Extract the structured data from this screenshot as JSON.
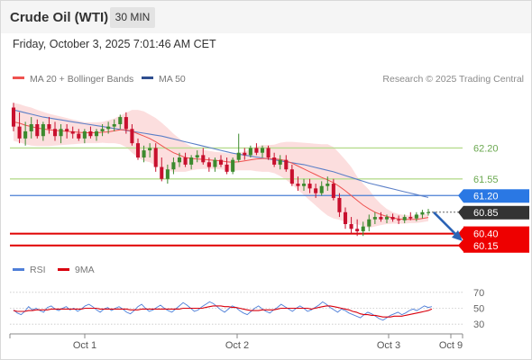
{
  "header": {
    "title": "Crude Oil (WTI)",
    "interval": "30 MIN"
  },
  "timestamp": "Friday, October 3, 2025 7:01:46 AM CET",
  "legend": {
    "ma20": "MA 20 + Bollinger Bands",
    "ma50": "MA 50",
    "credit": "Research © 2025 Trading Central"
  },
  "rsi_legend": {
    "rsi": "RSI",
    "ma9": "9MA"
  },
  "colors": {
    "up": "#3c8a2e",
    "down": "#c8102e",
    "ma20": "#ef5350",
    "band_fill": "#fbd3d3",
    "ma50": "#5b7fc7",
    "green_level": "#b7dc8f",
    "blue_level": "#4a7fd4",
    "red_level": "#e00000",
    "last_price": "#333333",
    "arrow": "#2b63b5",
    "rsi_line": "#4f7fd8"
  },
  "chart_data": [
    {
      "type": "candlestick",
      "title": "Crude Oil (WTI)",
      "interval": "30 MIN",
      "x_ticks": [
        "Oct 1",
        "Oct 2",
        "Oct 3",
        "Oct 9"
      ],
      "ylim": [
        59.9,
        63.4
      ],
      "levels": [
        {
          "value": "62.20",
          "kind": "resistance",
          "color": "#b7dc8f"
        },
        {
          "value": "61.55",
          "kind": "resistance",
          "color": "#b7dc8f"
        },
        {
          "value": "61.20",
          "kind": "pivot",
          "color": "#4a7fd4"
        },
        {
          "value": "60.85",
          "kind": "last",
          "color": "#333333"
        },
        {
          "value": "60.40",
          "kind": "support",
          "color": "#e00000"
        },
        {
          "value": "60.15",
          "kind": "support",
          "color": "#e00000"
        }
      ],
      "candles": [
        [
          63.05,
          63.15,
          62.55,
          62.65
        ],
        [
          62.65,
          62.95,
          62.3,
          62.4
        ],
        [
          62.4,
          62.75,
          62.25,
          62.55
        ],
        [
          62.55,
          62.85,
          62.4,
          62.7
        ],
        [
          62.7,
          62.8,
          62.4,
          62.45
        ],
        [
          62.45,
          62.75,
          62.35,
          62.7
        ],
        [
          62.7,
          62.85,
          62.5,
          62.6
        ],
        [
          62.6,
          62.75,
          62.35,
          62.45
        ],
        [
          62.45,
          62.7,
          62.3,
          62.6
        ],
        [
          62.6,
          62.7,
          62.4,
          62.55
        ],
        [
          62.55,
          62.65,
          62.4,
          62.5
        ],
        [
          62.5,
          62.6,
          62.35,
          62.4
        ],
        [
          62.4,
          62.6,
          62.3,
          62.55
        ],
        [
          62.55,
          62.65,
          62.4,
          62.45
        ],
        [
          62.45,
          62.6,
          62.35,
          62.55
        ],
        [
          62.55,
          62.7,
          62.45,
          62.6
        ],
        [
          62.6,
          62.75,
          62.5,
          62.65
        ],
        [
          62.65,
          62.8,
          62.55,
          62.7
        ],
        [
          62.7,
          62.9,
          62.6,
          62.85
        ],
        [
          62.85,
          62.95,
          62.5,
          62.6
        ],
        [
          62.6,
          62.7,
          62.25,
          62.3
        ],
        [
          62.3,
          62.4,
          61.95,
          62.0
        ],
        [
          62.0,
          62.25,
          61.9,
          62.15
        ],
        [
          62.15,
          62.3,
          62.0,
          62.2
        ],
        [
          62.2,
          62.3,
          61.7,
          61.8
        ],
        [
          61.8,
          62.0,
          61.5,
          61.55
        ],
        [
          61.55,
          61.85,
          61.45,
          61.75
        ],
        [
          61.75,
          62.0,
          61.65,
          61.9
        ],
        [
          61.9,
          62.1,
          61.8,
          62.0
        ],
        [
          62.0,
          62.1,
          61.8,
          61.85
        ],
        [
          61.85,
          62.05,
          61.75,
          62.0
        ],
        [
          62.0,
          62.15,
          61.9,
          62.05
        ],
        [
          62.05,
          62.2,
          61.85,
          61.9
        ],
        [
          61.9,
          62.0,
          61.7,
          61.8
        ],
        [
          61.8,
          62.0,
          61.7,
          61.95
        ],
        [
          61.95,
          62.05,
          61.8,
          61.85
        ],
        [
          61.85,
          62.0,
          61.65,
          61.7
        ],
        [
          61.7,
          62.0,
          61.65,
          61.95
        ],
        [
          61.95,
          62.5,
          61.9,
          62.1
        ],
        [
          62.1,
          62.2,
          61.95,
          62.05
        ],
        [
          62.05,
          62.25,
          62.0,
          62.2
        ],
        [
          62.2,
          62.3,
          62.05,
          62.1
        ],
        [
          62.1,
          62.25,
          62.0,
          62.2
        ],
        [
          62.2,
          62.25,
          61.95,
          62.0
        ],
        [
          62.0,
          62.1,
          61.8,
          61.85
        ],
        [
          61.85,
          62.05,
          61.75,
          61.95
        ],
        [
          61.95,
          62.05,
          61.7,
          61.75
        ],
        [
          61.75,
          61.85,
          61.4,
          61.45
        ],
        [
          61.45,
          61.6,
          61.3,
          61.4
        ],
        [
          61.4,
          61.55,
          61.3,
          61.45
        ],
        [
          61.45,
          61.55,
          61.25,
          61.35
        ],
        [
          61.35,
          61.45,
          61.15,
          61.25
        ],
        [
          61.25,
          61.5,
          61.2,
          61.4
        ],
        [
          61.4,
          61.6,
          61.3,
          61.45
        ],
        [
          61.45,
          61.55,
          61.1,
          61.15
        ],
        [
          61.15,
          61.25,
          60.75,
          60.85
        ],
        [
          60.85,
          60.95,
          60.5,
          60.6
        ],
        [
          60.6,
          60.75,
          60.4,
          60.5
        ],
        [
          60.5,
          60.7,
          60.35,
          60.45
        ],
        [
          60.45,
          60.65,
          60.35,
          60.55
        ],
        [
          60.55,
          60.8,
          60.45,
          60.7
        ],
        [
          60.7,
          60.85,
          60.6,
          60.75
        ],
        [
          60.75,
          60.85,
          60.65,
          60.7
        ],
        [
          60.7,
          60.8,
          60.62,
          60.75
        ],
        [
          60.75,
          60.82,
          60.65,
          60.7
        ],
        [
          60.7,
          60.78,
          60.6,
          60.68
        ],
        [
          60.68,
          60.8,
          60.62,
          60.75
        ],
        [
          60.75,
          60.85,
          60.68,
          60.72
        ],
        [
          60.72,
          60.85,
          60.66,
          60.8
        ],
        [
          60.8,
          60.9,
          60.72,
          60.85
        ],
        [
          60.85,
          60.92,
          60.78,
          60.85
        ]
      ],
      "ma20": [
        62.75,
        62.72,
        62.68,
        62.65,
        62.62,
        62.6,
        62.58,
        62.57,
        62.56,
        62.55,
        62.54,
        62.53,
        62.52,
        62.52,
        62.52,
        62.53,
        62.54,
        62.56,
        62.58,
        62.58,
        62.55,
        62.5,
        62.45,
        62.4,
        62.33,
        62.25,
        62.17,
        62.1,
        62.05,
        62.0,
        61.98,
        61.97,
        61.96,
        61.95,
        61.94,
        61.93,
        61.91,
        61.9,
        61.91,
        61.93,
        61.95,
        61.97,
        61.98,
        61.98,
        61.97,
        61.96,
        61.93,
        61.88,
        61.82,
        61.76,
        61.7,
        61.64,
        61.58,
        61.53,
        61.47,
        61.39,
        61.3,
        61.2,
        61.1,
        61.0,
        60.92,
        60.85,
        60.8,
        60.76,
        60.73,
        60.71,
        60.7,
        60.7,
        60.7,
        60.72,
        60.74
      ],
      "ma50": [
        63.0,
        62.97,
        62.94,
        62.91,
        62.88,
        62.85,
        62.83,
        62.81,
        62.79,
        62.77,
        62.75,
        62.73,
        62.71,
        62.69,
        62.67,
        62.65,
        62.63,
        62.61,
        62.59,
        62.57,
        62.55,
        62.53,
        62.51,
        62.49,
        62.47,
        62.45,
        62.42,
        62.39,
        62.36,
        62.33,
        62.3,
        62.27,
        62.24,
        62.21,
        62.18,
        62.15,
        62.12,
        62.09,
        62.07,
        62.05,
        62.03,
        62.01,
        61.99,
        61.97,
        61.95,
        61.93,
        61.91,
        61.89,
        61.87,
        61.85,
        61.82,
        61.79,
        61.76,
        61.73,
        61.7,
        61.66,
        61.62,
        61.58,
        61.54,
        61.5,
        61.46,
        61.43,
        61.4,
        61.37,
        61.34,
        61.31,
        61.28,
        61.25,
        61.22,
        61.19,
        61.16
      ],
      "bb_width": [
        0.4,
        0.4,
        0.4,
        0.4,
        0.38,
        0.36,
        0.34,
        0.32,
        0.3,
        0.28,
        0.26,
        0.24,
        0.22,
        0.22,
        0.22,
        0.22,
        0.24,
        0.26,
        0.3,
        0.36,
        0.45,
        0.5,
        0.52,
        0.5,
        0.5,
        0.48,
        0.45,
        0.4,
        0.35,
        0.3,
        0.25,
        0.22,
        0.2,
        0.19,
        0.18,
        0.18,
        0.18,
        0.18,
        0.18,
        0.2,
        0.22,
        0.26,
        0.28,
        0.28,
        0.3,
        0.35,
        0.4,
        0.45,
        0.5,
        0.55,
        0.6,
        0.65,
        0.7,
        0.75,
        0.75,
        0.7,
        0.65,
        0.6,
        0.5,
        0.45,
        0.4,
        0.3,
        0.22,
        0.16,
        0.12,
        0.1,
        0.09,
        0.08,
        0.08,
        0.08,
        0.08
      ],
      "forecast": {
        "from": "60.85",
        "to": "60.15"
      }
    },
    {
      "type": "line",
      "name": "RSI",
      "ylim": [
        20,
        80
      ],
      "y_ticks": [
        "70",
        "50",
        "30"
      ],
      "series": [
        {
          "name": "RSI",
          "values": [
            48,
            44,
            42,
            46,
            52,
            48,
            50,
            47,
            45,
            51,
            53,
            49,
            47,
            50,
            52,
            48,
            50,
            46,
            49,
            53,
            55,
            52,
            48,
            45,
            49,
            51,
            47,
            50,
            52,
            49,
            45,
            43,
            47,
            52,
            55,
            50,
            46,
            48,
            51,
            54,
            50,
            47,
            45,
            49,
            53,
            57,
            54,
            50,
            46,
            48,
            52,
            55,
            58,
            56,
            52,
            48,
            45,
            49,
            53,
            51,
            47,
            44,
            42,
            46,
            50,
            53,
            49,
            46,
            44,
            48,
            51,
            55,
            52,
            49,
            46,
            50,
            53,
            50,
            46,
            48,
            51,
            54,
            58,
            55,
            51,
            48,
            45,
            49,
            47,
            44,
            42,
            40,
            38,
            42,
            45,
            43,
            40,
            37,
            35,
            38,
            41,
            43,
            45,
            42,
            44,
            47,
            49,
            47,
            50,
            53,
            51,
            52
          ]
        },
        {
          "name": "9MA",
          "values": [
            47,
            46,
            46,
            46,
            47,
            47,
            48,
            48,
            48,
            48,
            49,
            49,
            49,
            49,
            49,
            49,
            49,
            49,
            49,
            50,
            50,
            50,
            50,
            49,
            49,
            49,
            49,
            49,
            49,
            49,
            49,
            48,
            48,
            48,
            49,
            49,
            49,
            49,
            49,
            49,
            49,
            49,
            49,
            49,
            49,
            50,
            50,
            50,
            50,
            50,
            50,
            51,
            52,
            53,
            53,
            53,
            52,
            52,
            51,
            51,
            50,
            49,
            48,
            47,
            47,
            47,
            48,
            48,
            48,
            48,
            49,
            50,
            50,
            50,
            50,
            50,
            50,
            50,
            50,
            49,
            50,
            51,
            52,
            53,
            53,
            52,
            51,
            50,
            49,
            48,
            46,
            45,
            43,
            42,
            42,
            41,
            41,
            40,
            39,
            39,
            39,
            40,
            40,
            40,
            41,
            42,
            43,
            44,
            45,
            46,
            47,
            49
          ]
        }
      ]
    }
  ]
}
